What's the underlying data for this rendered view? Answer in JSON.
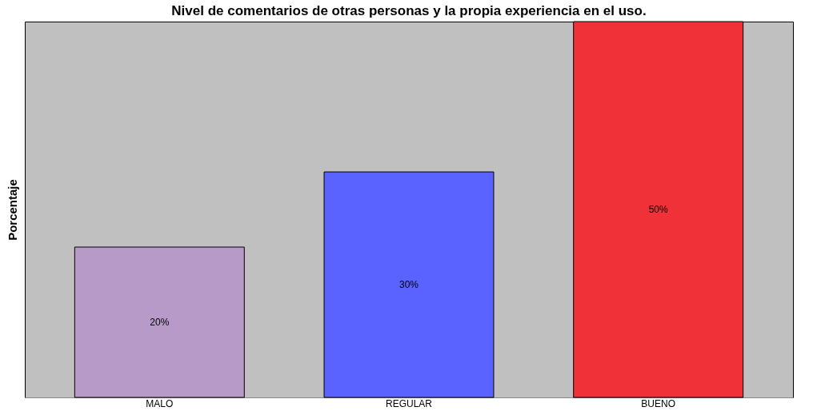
{
  "chart_data": {
    "type": "bar",
    "title": "Nivel de comentarios de otras personas y la propia experiencia en el uso.",
    "ylabel": "Porcentaje",
    "categories": [
      "MALO",
      "REGULAR",
      "BUENO"
    ],
    "values": [
      20,
      30,
      50
    ],
    "colors": [
      "#b89ac8",
      "#5a62ff",
      "#f03238"
    ],
    "value_labels": [
      "20%",
      "30%",
      "50%"
    ]
  }
}
